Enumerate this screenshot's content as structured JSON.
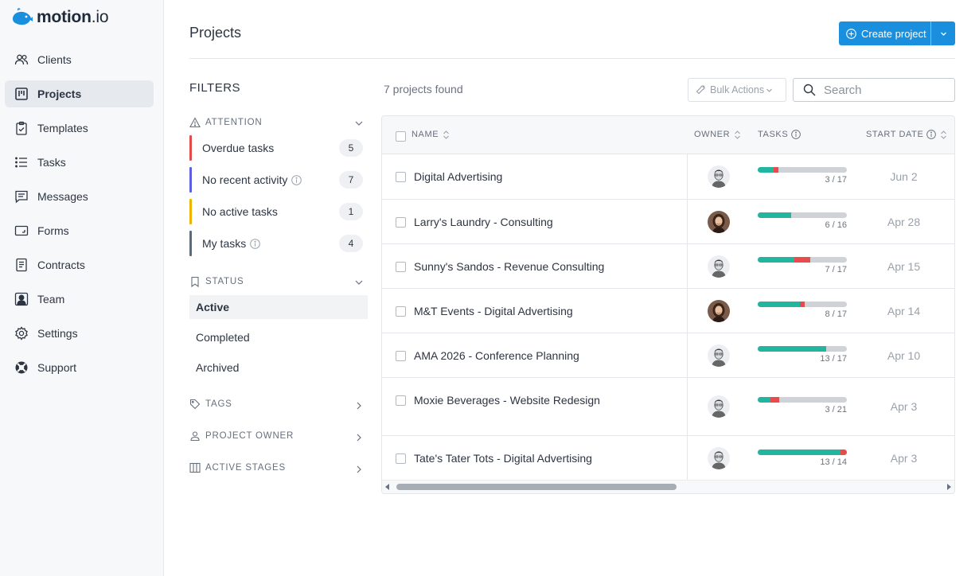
{
  "app": {
    "logo_text": "motion",
    "logo_suffix": ".io"
  },
  "sidebar": {
    "items": [
      {
        "label": "Clients",
        "icon": "users-icon"
      },
      {
        "label": "Projects",
        "icon": "projects-board-icon",
        "active": true
      },
      {
        "label": "Templates",
        "icon": "clipboard-check-icon"
      },
      {
        "label": "Tasks",
        "icon": "list-icon"
      },
      {
        "label": "Messages",
        "icon": "message-icon"
      },
      {
        "label": "Forms",
        "icon": "form-icon"
      },
      {
        "label": "Contracts",
        "icon": "document-icon"
      },
      {
        "label": "Team",
        "icon": "team-portrait-icon"
      },
      {
        "label": "Settings",
        "icon": "gear-icon"
      },
      {
        "label": "Support",
        "icon": "lifebuoy-icon"
      }
    ]
  },
  "header": {
    "title": "Projects",
    "create_label": "Create project"
  },
  "filters": {
    "title": "FILTERS",
    "attention": {
      "label": "ATTENTION",
      "items": [
        {
          "label": "Overdue tasks",
          "count": "5",
          "color": "#e24b4b",
          "info": false
        },
        {
          "label": "No recent activity",
          "count": "7",
          "color": "#5b5fe0",
          "info": true
        },
        {
          "label": "No active tasks",
          "count": "1",
          "color": "#f0b400",
          "info": false
        },
        {
          "label": "My tasks",
          "count": "4",
          "color": "#5d6b78",
          "info": true
        }
      ]
    },
    "status": {
      "label": "STATUS",
      "items": [
        {
          "label": "Active",
          "active": true
        },
        {
          "label": "Completed"
        },
        {
          "label": "Archived"
        }
      ]
    },
    "tags": {
      "label": "TAGS"
    },
    "project_owner": {
      "label": "PROJECT OWNER"
    },
    "active_stages": {
      "label": "ACTIVE STAGES"
    }
  },
  "toolbar": {
    "found_text": "7 projects found",
    "bulk_label": "Bulk Actions",
    "search_placeholder": "Search"
  },
  "table": {
    "columns": {
      "name": "NAME",
      "owner": "OWNER",
      "tasks": "TASKS",
      "start_date": "START DATE"
    },
    "rows": [
      {
        "name": "Digital Advertising",
        "owner": "man",
        "done": 3,
        "total": 17,
        "overdue": 1,
        "tasks_text": "3 / 17",
        "date": "Jun 2"
      },
      {
        "name": "Larry's Laundry - Consulting",
        "owner": "woman",
        "done": 6,
        "total": 16,
        "overdue": 0,
        "tasks_text": "6 / 16",
        "date": "Apr 28"
      },
      {
        "name": "Sunny's Sandos - Revenue Consulting",
        "owner": "man",
        "done": 7,
        "total": 17,
        "overdue": 3,
        "tasks_text": "7 / 17",
        "date": "Apr 15"
      },
      {
        "name": "M&T Events - Digital Advertising",
        "owner": "woman",
        "done": 8,
        "total": 17,
        "overdue": 1,
        "tasks_text": "8 / 17",
        "date": "Apr 14"
      },
      {
        "name": "AMA 2026 - Conference Planning",
        "owner": "man",
        "done": 13,
        "total": 17,
        "overdue": 0,
        "tasks_text": "13 / 17",
        "date": "Apr 10"
      },
      {
        "name": "Moxie Beverages - Website Redesign",
        "owner": "man",
        "done": 3,
        "total": 21,
        "overdue": 2,
        "tasks_text": "3 / 21",
        "date": "Apr 3"
      },
      {
        "name": "Tate's Tater Tots - Digital Advertising",
        "owner": "man",
        "done": 13,
        "total": 14,
        "overdue": 1,
        "tasks_text": "13 / 14",
        "date": "Apr 3"
      }
    ]
  },
  "colors": {
    "accent": "#1a8fde",
    "progress_done": "#24b5a0",
    "progress_overdue": "#e74c4c",
    "progress_track": "#cfd3d8"
  }
}
